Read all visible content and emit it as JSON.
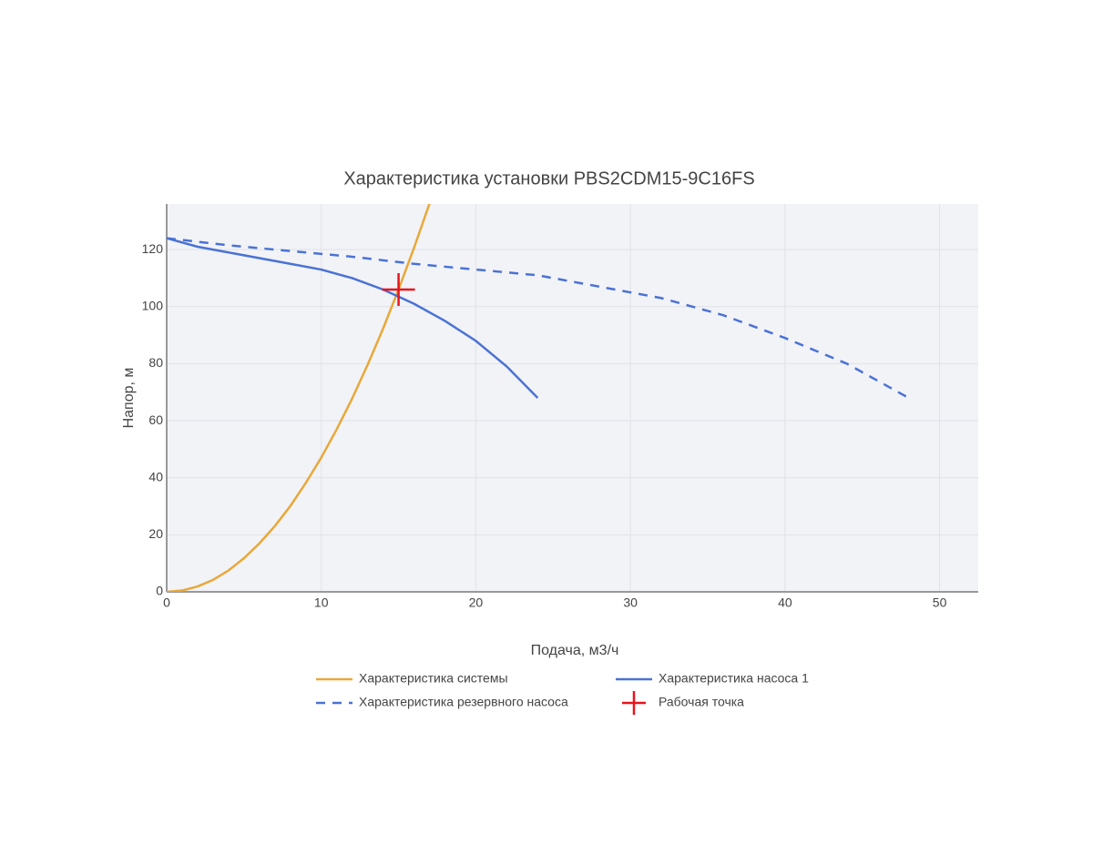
{
  "chart_data": {
    "type": "line",
    "title": "Характеристика установки PBS2CDM15-9C16FS",
    "x_label": "Подача, м3/ч",
    "y_label": "Напор, м",
    "xlim": [
      0,
      52.5
    ],
    "ylim": [
      0,
      136
    ],
    "xticks": [
      0,
      10,
      20,
      30,
      40,
      50
    ],
    "yticks": [
      0,
      20,
      40,
      60,
      80,
      100,
      120
    ],
    "grid": true,
    "legend": "bottom",
    "series": [
      {
        "name": "Характеристика системы",
        "color": "#e8a838",
        "mode": "line",
        "dash": false,
        "x": [
          0,
          1,
          2,
          3,
          4,
          5,
          6,
          7,
          8,
          9,
          10,
          11,
          12,
          13,
          14,
          15,
          16,
          17
        ],
        "values": [
          0,
          0.47,
          1.9,
          4.2,
          7.5,
          11.8,
          17,
          23.1,
          30.1,
          38.2,
          47.1,
          57,
          67.8,
          79.6,
          92.3,
          106,
          120.6,
          136.1
        ]
      },
      {
        "name": "Характеристика насоса 1",
        "color": "#4a72d6",
        "mode": "line",
        "dash": false,
        "x": [
          0,
          2,
          4,
          6,
          8,
          10,
          12,
          14,
          16,
          18,
          20,
          22,
          24
        ],
        "values": [
          124,
          121,
          119,
          117,
          115,
          113,
          110,
          106,
          101,
          95,
          88,
          79,
          68
        ]
      },
      {
        "name": "Характеристика резервного насоса",
        "color": "#4a72d6",
        "mode": "line",
        "dash": true,
        "x": [
          0,
          4,
          8,
          12,
          16,
          20,
          24,
          28,
          32,
          36,
          40,
          44,
          48
        ],
        "values": [
          124,
          121.5,
          119.5,
          117.5,
          115,
          113,
          111,
          107,
          103,
          97,
          89,
          80,
          68
        ]
      },
      {
        "name": "Рабочая точка",
        "color": "#e8141c",
        "mode": "marker",
        "dash": false,
        "x": [
          15
        ],
        "values": [
          106
        ]
      }
    ]
  }
}
